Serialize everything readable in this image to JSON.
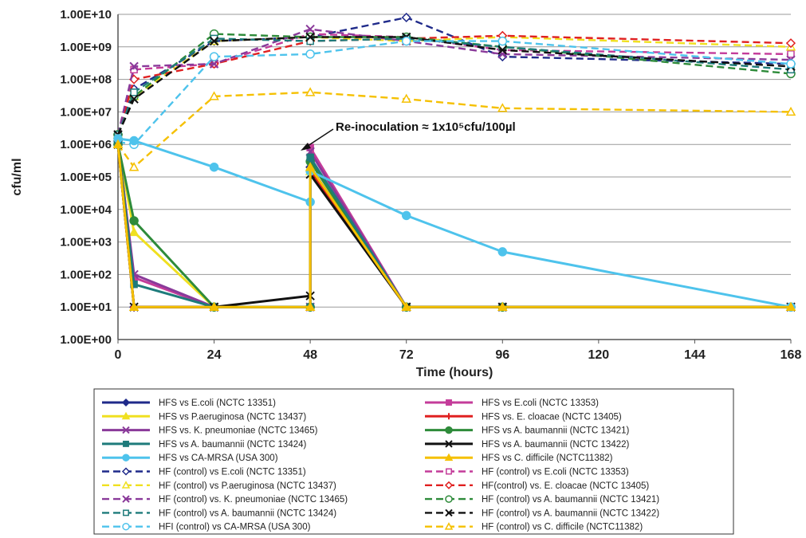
{
  "chart_data": {
    "type": "line",
    "ylabel": "cfu/ml",
    "xlabel": "Time (hours)",
    "y_scale": "log",
    "ylim": [
      1,
      10000000000
    ],
    "xlim": [
      0,
      168
    ],
    "y_tick_labels": [
      "1.00E+00",
      "1.00E+01",
      "1.00E+02",
      "1.00E+03",
      "1.00E+04",
      "1.00E+05",
      "1.00E+06",
      "1.00E+07",
      "1.00E+08",
      "1.00E+09",
      "1.00E+10"
    ],
    "x_ticks": [
      0,
      24,
      48,
      72,
      96,
      120,
      144,
      168
    ],
    "grid": "horizontal",
    "legend_position": "bottom",
    "annotation": {
      "text": "Re-inoculation ≈ 1x10⁵cfu/100µl",
      "x": 48,
      "y": 1000000
    },
    "series": [
      {
        "name": "HFS vs E.coli (NCTC 13351)",
        "color": "#1f2a8a",
        "dash": false,
        "marker": "diamond",
        "x": [
          0,
          4,
          24,
          48,
          48,
          72,
          96,
          168
        ],
        "y": [
          1000000,
          10,
          10,
          10,
          200000,
          10,
          10,
          10
        ]
      },
      {
        "name": "HFS vs E.coli (NCTC 13353)",
        "color": "#c43c9a",
        "dash": false,
        "marker": "square",
        "x": [
          0,
          4,
          24,
          48,
          48,
          72,
          96,
          168
        ],
        "y": [
          1200000,
          80,
          10,
          10,
          800000,
          10,
          10,
          10
        ]
      },
      {
        "name": "HFS vs P.aeruginosa (NCTC 13437)",
        "color": "#f0e020",
        "dash": false,
        "marker": "triangle",
        "x": [
          0,
          4,
          24,
          48,
          48,
          72,
          96,
          168
        ],
        "y": [
          1000000,
          2000,
          10,
          10,
          150000,
          10,
          10,
          10
        ]
      },
      {
        "name": "HFS vs. E. cloacae (NCTC 13405)",
        "color": "#e02020",
        "dash": false,
        "marker": "plus",
        "x": [
          0,
          4,
          24,
          48,
          48,
          72,
          96,
          168
        ],
        "y": [
          1000000,
          10,
          10,
          10,
          150000,
          10,
          10,
          10
        ]
      },
      {
        "name": "HFS vs. K. pneumoniae (NCTC 13465)",
        "color": "#8a3a9a",
        "dash": false,
        "marker": "x",
        "x": [
          0,
          4,
          24,
          48,
          48,
          72,
          96,
          168
        ],
        "y": [
          1000000,
          100,
          10,
          10,
          600000,
          10,
          10,
          10
        ]
      },
      {
        "name": "HFS vs A. baumannii (NCTC 13421)",
        "color": "#2e8b3a",
        "dash": false,
        "marker": "circle",
        "x": [
          0,
          4,
          24,
          48,
          48,
          72,
          96,
          168
        ],
        "y": [
          1000000,
          4500,
          10,
          10,
          300000,
          10,
          10,
          10
        ]
      },
      {
        "name": "HFS vs A. baumannii (NCTC 13424)",
        "color": "#1e7b7b",
        "dash": false,
        "marker": "square",
        "x": [
          0,
          4,
          24,
          48,
          48,
          72,
          96,
          168
        ],
        "y": [
          1000000,
          50,
          10,
          10,
          400000,
          10,
          10,
          10
        ]
      },
      {
        "name": "HFS vs A. baumannii (NCTC 13422)",
        "color": "#111111",
        "dash": false,
        "marker": "x",
        "x": [
          0,
          4,
          24,
          48,
          48,
          72,
          96,
          168
        ],
        "y": [
          1000000,
          10,
          10,
          22,
          120000,
          10,
          10,
          10
        ]
      },
      {
        "name": "HFS vs CA-MRSA (USA 300)",
        "color": "#4ec3ec",
        "dash": false,
        "marker": "circle",
        "x": [
          0,
          4,
          24,
          48,
          48,
          72,
          96,
          168
        ],
        "y": [
          1500000,
          1300000,
          200000,
          17000,
          150000,
          6500,
          500,
          10
        ]
      },
      {
        "name": "HFS vs C. difficile (NCTC11382)",
        "color": "#f5c000",
        "dash": false,
        "marker": "triangle",
        "x": [
          0,
          4,
          24,
          48,
          48,
          72,
          96,
          168
        ],
        "y": [
          1000000,
          10,
          10,
          10,
          200000,
          10,
          10,
          10
        ]
      },
      {
        "name": "HF (control) vs E.coli (NCTC 13351)",
        "color": "#1f2a8a",
        "dash": true,
        "marker": "diamond-open",
        "x": [
          0,
          4,
          24,
          48,
          72,
          96,
          168
        ],
        "y": [
          2000000,
          50000000,
          1500000000,
          2000000000,
          8000000000,
          500000000,
          300000000
        ]
      },
      {
        "name": "HF (control) vs E.coli (NCTC 13353)",
        "color": "#c43c9a",
        "dash": true,
        "marker": "square-open",
        "x": [
          0,
          4,
          24,
          48,
          72,
          96,
          168
        ],
        "y": [
          2000000,
          200000000,
          300000000,
          2500000000,
          2000000000,
          800000000,
          600000000
        ]
      },
      {
        "name": "HF (control) vs P.aeruginosa (NCTC 13437)",
        "color": "#f0e020",
        "dash": true,
        "marker": "triangle-open",
        "x": [
          0,
          4,
          24,
          48,
          72,
          96,
          168
        ],
        "y": [
          2000000,
          30000000,
          1500000000,
          2000000000,
          1500000000,
          2000000000,
          1000000000
        ]
      },
      {
        "name": "HF(control) vs. E. cloacae (NCTC 13405)",
        "color": "#e02020",
        "dash": true,
        "marker": "diamond-open",
        "x": [
          0,
          4,
          24,
          48,
          72,
          96,
          168
        ],
        "y": [
          2000000,
          100000000,
          300000000,
          1500000000,
          1800000000,
          2200000000,
          1300000000
        ]
      },
      {
        "name": "HF (control) vs. K. pneumoniae (NCTC 13465)",
        "color": "#8a3a9a",
        "dash": true,
        "marker": "x",
        "x": [
          0,
          4,
          24,
          48,
          72,
          96,
          168
        ],
        "y": [
          2000000,
          250000000,
          300000000,
          3500000000,
          1500000000,
          600000000,
          400000000
        ]
      },
      {
        "name": "HF (control) vs A. baumannii (NCTC 13421)",
        "color": "#2e8b3a",
        "dash": true,
        "marker": "circle-open",
        "x": [
          0,
          4,
          24,
          48,
          72,
          96,
          168
        ],
        "y": [
          2000000,
          30000000,
          2500000000,
          2000000000,
          2000000000,
          1000000000,
          150000000
        ]
      },
      {
        "name": "HF (control) vs A. baumannii (NCTC 13424)",
        "color": "#1e7b7b",
        "dash": true,
        "marker": "square-open",
        "x": [
          0,
          4,
          24,
          48,
          72,
          96,
          168
        ],
        "y": [
          2000000,
          40000000,
          1800000000,
          1500000000,
          1800000000,
          1000000000,
          200000000
        ]
      },
      {
        "name": "HF (control) vs A. baumannii (NCTC 13422)",
        "color": "#111111",
        "dash": true,
        "marker": "x",
        "x": [
          0,
          4,
          24,
          48,
          72,
          96,
          168
        ],
        "y": [
          2000000,
          25000000,
          1500000000,
          2000000000,
          2000000000,
          800000000,
          250000000
        ]
      },
      {
        "name": "HFI (control) vs CA-MRSA (USA 300)",
        "color": "#4ec3ec",
        "dash": true,
        "marker": "circle-open",
        "x": [
          0,
          4,
          24,
          48,
          72,
          96,
          168
        ],
        "y": [
          1200000,
          1000000,
          500000000,
          600000000,
          1500000000,
          1500000000,
          300000000
        ]
      },
      {
        "name": "HF (control) vs C. difficile (NCTC11382)",
        "color": "#f5c000",
        "dash": true,
        "marker": "triangle-open",
        "x": [
          0,
          4,
          24,
          48,
          72,
          96,
          168
        ],
        "y": [
          1000000,
          200000,
          30000000,
          40000000,
          25000000,
          13000000,
          10000000
        ]
      }
    ]
  }
}
